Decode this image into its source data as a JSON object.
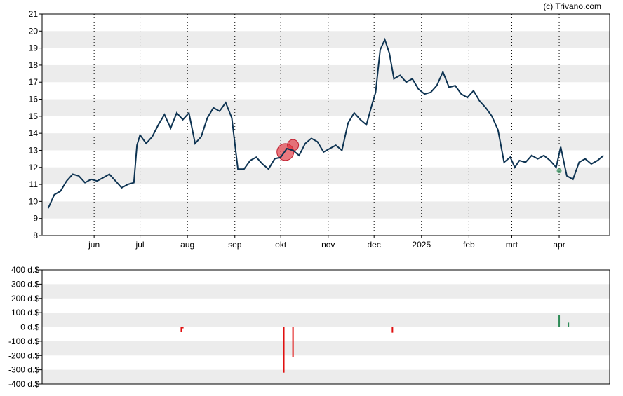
{
  "copyright": "(c) Trivano.com",
  "colors": {
    "price_line": "#0d3352",
    "band": "#ececec",
    "grid": "#000000",
    "buy": "#2e8b57",
    "sell": "#e01010",
    "insider_sell_bubble": "#e0303a"
  },
  "chart_data": [
    {
      "type": "line",
      "title": "",
      "xlabel": "",
      "ylabel": "",
      "ylim": [
        8,
        21
      ],
      "yticks": [
        "8",
        "9",
        "10",
        "11",
        "12",
        "13",
        "14",
        "15",
        "16",
        "17",
        "18",
        "19",
        "20",
        "21"
      ],
      "x_tick_labels": [
        "jun",
        "jul",
        "aug",
        "sep",
        "okt",
        "nov",
        "dec",
        "2025",
        "feb",
        "mrt",
        "apr"
      ],
      "grid": "alternating horizontal bands, dotted vertical lines at month starts",
      "x": [
        "2024-05-02",
        "2024-05-06",
        "2024-05-10",
        "2024-05-14",
        "2024-05-18",
        "2024-05-22",
        "2024-05-26",
        "2024-05-30",
        "2024-06-03",
        "2024-06-07",
        "2024-06-11",
        "2024-06-15",
        "2024-06-19",
        "2024-06-23",
        "2024-06-27",
        "2024-06-29",
        "2024-07-01",
        "2024-07-05",
        "2024-07-09",
        "2024-07-13",
        "2024-07-17",
        "2024-07-21",
        "2024-07-25",
        "2024-07-29",
        "2024-08-02",
        "2024-08-06",
        "2024-08-10",
        "2024-08-14",
        "2024-08-18",
        "2024-08-22",
        "2024-08-26",
        "2024-08-30",
        "2024-09-03",
        "2024-09-07",
        "2024-09-11",
        "2024-09-15",
        "2024-09-19",
        "2024-09-23",
        "2024-09-27",
        "2024-10-01",
        "2024-10-05",
        "2024-10-09",
        "2024-10-13",
        "2024-10-17",
        "2024-10-21",
        "2024-10-25",
        "2024-10-29",
        "2024-11-02",
        "2024-11-06",
        "2024-11-10",
        "2024-11-14",
        "2024-11-18",
        "2024-11-22",
        "2024-11-26",
        "2024-11-30",
        "2024-12-02",
        "2024-12-05",
        "2024-12-08",
        "2024-12-11",
        "2024-12-14",
        "2024-12-18",
        "2024-12-22",
        "2024-12-26",
        "2024-12-30",
        "2025-01-03",
        "2025-01-07",
        "2025-01-11",
        "2025-01-15",
        "2025-01-19",
        "2025-01-23",
        "2025-01-27",
        "2025-01-31",
        "2025-02-04",
        "2025-02-08",
        "2025-02-12",
        "2025-02-16",
        "2025-02-20",
        "2025-02-24",
        "2025-02-28",
        "2025-03-03",
        "2025-03-06",
        "2025-03-10",
        "2025-03-14",
        "2025-03-18",
        "2025-03-22",
        "2025-03-26",
        "2025-03-30",
        "2025-04-02",
        "2025-04-06",
        "2025-04-10",
        "2025-04-14",
        "2025-04-18",
        "2025-04-22",
        "2025-04-26",
        "2025-04-30"
      ],
      "series": [
        {
          "values": [
            9.6,
            10.4,
            10.6,
            11.2,
            11.6,
            11.5,
            11.1,
            11.3,
            11.2,
            11.4,
            11.6,
            11.2,
            10.8,
            11.0,
            11.1,
            13.3,
            13.9,
            13.4,
            13.8,
            14.5,
            15.1,
            14.3,
            15.2,
            14.8,
            15.2,
            13.4,
            13.8,
            14.9,
            15.5,
            15.3,
            15.8,
            14.9,
            11.9,
            11.9,
            12.4,
            12.6,
            12.2,
            11.9,
            12.5,
            12.6,
            13.1,
            13.0,
            12.7,
            13.4,
            13.7,
            13.5,
            12.9,
            13.1,
            13.3,
            13.0,
            14.6,
            15.2,
            14.8,
            14.5,
            15.8,
            16.4,
            18.9,
            19.5,
            18.7,
            17.2,
            17.4,
            17.0,
            17.2,
            16.6,
            16.3,
            16.4,
            16.8,
            17.6,
            16.7,
            16.8,
            16.3,
            16.1,
            16.5,
            15.9,
            15.5,
            15.0,
            14.2,
            12.3,
            12.6,
            12.0,
            12.4,
            12.3,
            12.7,
            12.5,
            12.7,
            12.4,
            12.0,
            13.2,
            11.5,
            11.3,
            12.3,
            12.5,
            12.2,
            12.4,
            12.7
          ]
        }
      ],
      "markers": [
        {
          "kind": "sell",
          "date": "2024-10-04",
          "value": 12.9,
          "size": "large"
        },
        {
          "kind": "sell",
          "date": "2024-10-09",
          "value": 13.3,
          "size": "small"
        },
        {
          "kind": "buy",
          "date": "2025-04-01",
          "value": 11.8,
          "size": "dot"
        }
      ]
    },
    {
      "type": "bar",
      "title": "",
      "xlabel": "",
      "ylabel": "",
      "ylim": [
        -400,
        400
      ],
      "yticks": [
        "-400 d.$",
        "-300 d.$",
        "-200 d.$",
        "-100 d.$",
        "0 d.$",
        "100 d.$",
        "200 d.$",
        "300 d.$",
        "400 d.$"
      ],
      "x": [
        "2024-07-28",
        "2024-07-29",
        "2024-10-03",
        "2024-10-09",
        "2024-12-13",
        "2025-04-01",
        "2025-04-07"
      ],
      "series": [
        {
          "values": [
            -35,
            -10,
            -320,
            -210,
            -40,
            85,
            30
          ]
        }
      ]
    }
  ]
}
